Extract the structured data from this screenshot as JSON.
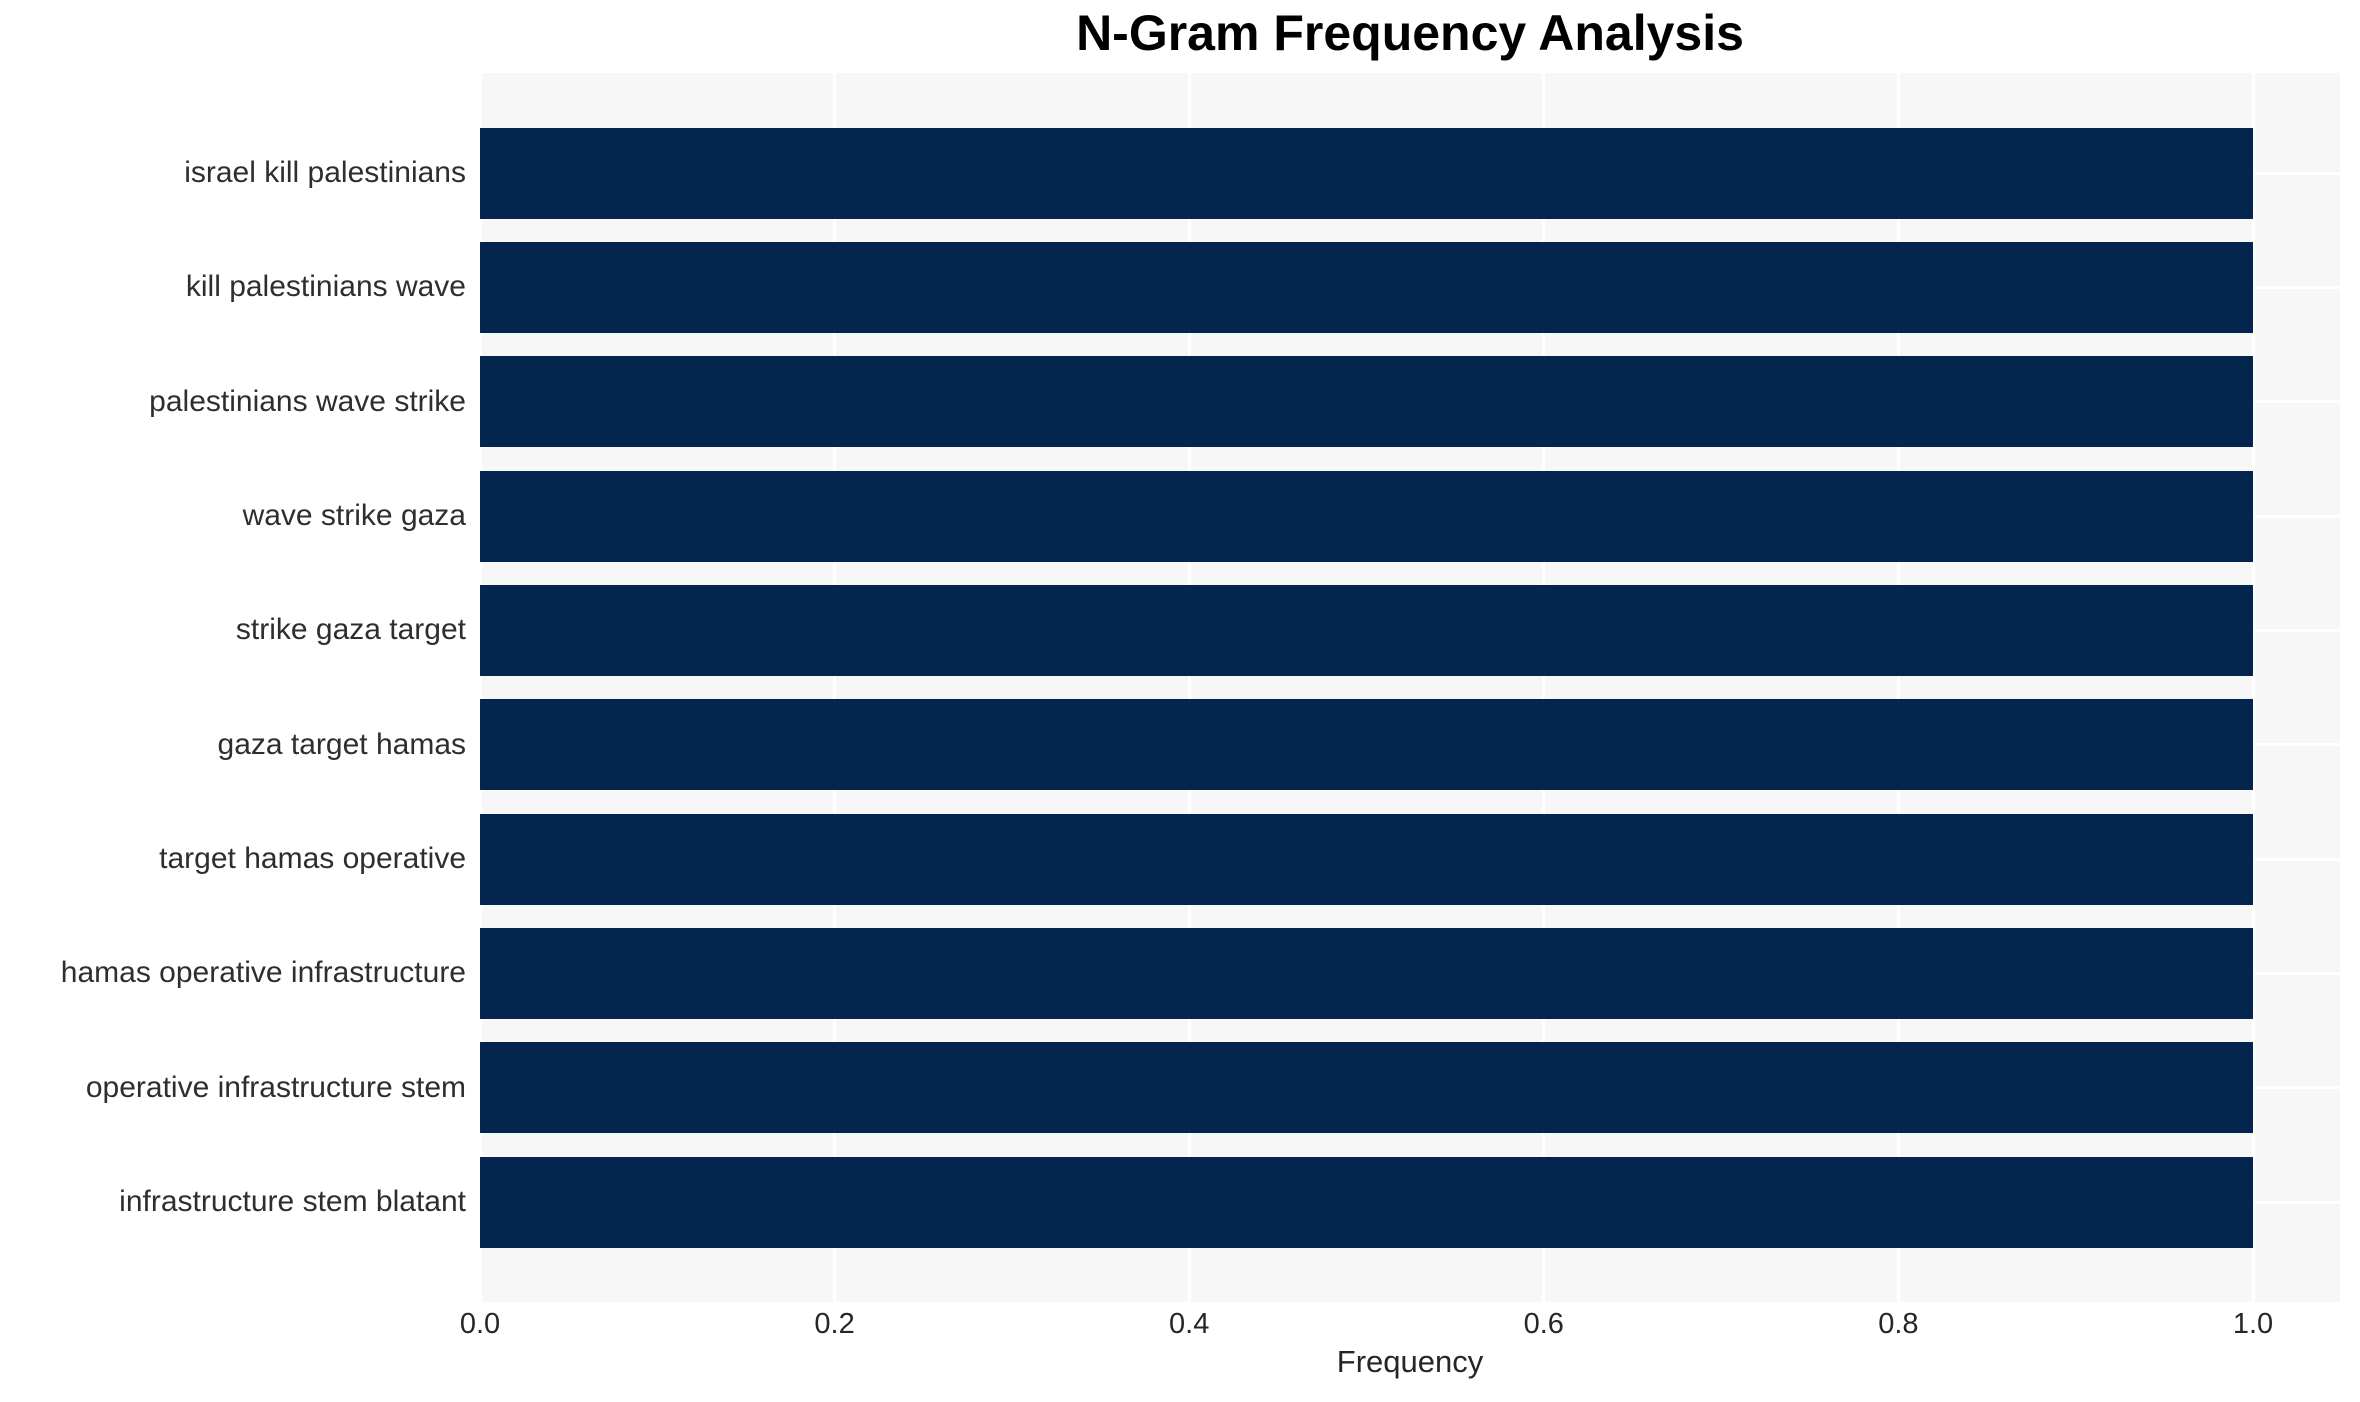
{
  "chart_data": {
    "type": "bar",
    "orientation": "horizontal",
    "title": "N-Gram Frequency Analysis",
    "xlabel": "Frequency",
    "ylabel": "",
    "categories": [
      "israel kill palestinians",
      "kill palestinians wave",
      "palestinians wave strike",
      "wave strike gaza",
      "strike gaza target",
      "gaza target hamas",
      "target hamas operative",
      "hamas operative infrastructure",
      "operative infrastructure stem",
      "infrastructure stem blatant"
    ],
    "values": [
      1.0,
      1.0,
      1.0,
      1.0,
      1.0,
      1.0,
      1.0,
      1.0,
      1.0,
      1.0
    ],
    "xticks": [
      0.0,
      0.2,
      0.4,
      0.6,
      0.8,
      1.0
    ],
    "xtick_labels": [
      "0.0",
      "0.2",
      "0.4",
      "0.6",
      "0.8",
      "1.0"
    ],
    "xlim": [
      0,
      1.049
    ],
    "grid": true,
    "legend_position": "none",
    "colors": {
      "bar": "#03254e",
      "plot_background": "#f7f7f7",
      "gridline": "#ffffff",
      "title": "#000000",
      "tick_label": "#262626",
      "category_label": "#2e2e2e"
    }
  }
}
